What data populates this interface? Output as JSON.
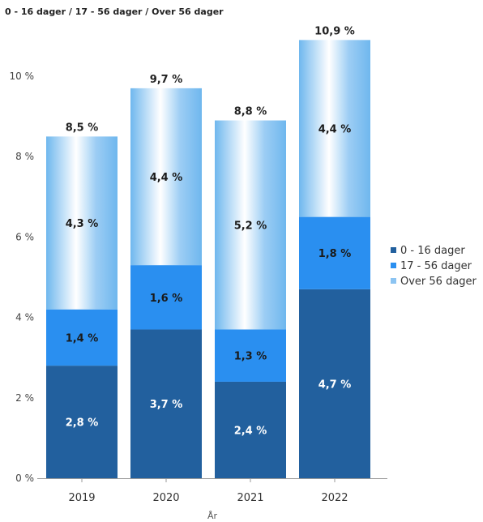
{
  "chart_data": {
    "type": "bar",
    "stacked": true,
    "title": "0 - 16 dager / 17 - 56 dager / Over 56 dager",
    "xlabel": "År",
    "ylabel": "",
    "categories": [
      "2019",
      "2020",
      "2021",
      "2022"
    ],
    "series": [
      {
        "name": "0 - 16 dager",
        "values": [
          2.8,
          3.7,
          2.4,
          4.7
        ],
        "labels": [
          "2,8 %",
          "3,7 %",
          "2,4 %",
          "4,7 %"
        ],
        "color": "#22609e"
      },
      {
        "name": "17 - 56 dager",
        "values": [
          1.4,
          1.6,
          1.3,
          1.8
        ],
        "labels": [
          "1,4 %",
          "1,6 %",
          "1,3 %",
          "1,8 %"
        ],
        "color": "#2a8ff0"
      },
      {
        "name": "Over 56 dager",
        "values": [
          4.3,
          4.4,
          5.2,
          4.4
        ],
        "labels": [
          "4,3 %",
          "4,4 %",
          "5,2 %",
          "4,4 %"
        ],
        "color": "#68b4ee"
      }
    ],
    "totals": [
      "8,5 %",
      "9,7 %",
      "8,8 %",
      "10,9 %"
    ],
    "ylim": [
      0,
      12
    ],
    "yticks": [
      {
        "value": 0,
        "label": "0 %"
      },
      {
        "value": 2,
        "label": "2 %"
      },
      {
        "value": 4,
        "label": "4 %"
      },
      {
        "value": 6,
        "label": "6 %"
      },
      {
        "value": 8,
        "label": "8 %"
      },
      {
        "value": 10,
        "label": "10 %"
      }
    ],
    "grid": false,
    "legend_position": "right"
  }
}
